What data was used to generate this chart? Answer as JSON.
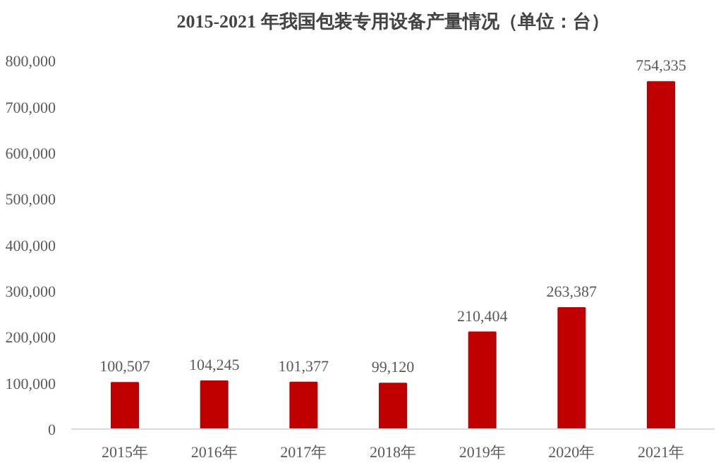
{
  "chart_data": {
    "type": "bar",
    "title": "2015-2021 年我国包装专用设备产量情况（单位：台）",
    "categories": [
      "2015年",
      "2016年",
      "2017年",
      "2018年",
      "2019年",
      "2020年",
      "2021年"
    ],
    "values": [
      100507,
      104245,
      101377,
      99120,
      210404,
      263387,
      754335
    ],
    "color": "#c00000",
    "ylim": [
      0,
      800000
    ],
    "yticks": [
      {
        "value": 0,
        "label": "0"
      },
      {
        "value": 100000,
        "label": "100,000"
      },
      {
        "value": 200000,
        "label": "200,000"
      },
      {
        "value": 300000,
        "label": "300,000"
      },
      {
        "value": 400000,
        "label": "400,000"
      },
      {
        "value": 500000,
        "label": "500,000"
      },
      {
        "value": 600000,
        "label": "600,000"
      },
      {
        "value": 700000,
        "label": "700,000"
      },
      {
        "value": 800000,
        "label": "800,000"
      }
    ],
    "value_labels": [
      "100,507",
      "104,245",
      "101,377",
      "99,120",
      "210,404",
      "263,387",
      "754,335"
    ],
    "grid": false
  }
}
